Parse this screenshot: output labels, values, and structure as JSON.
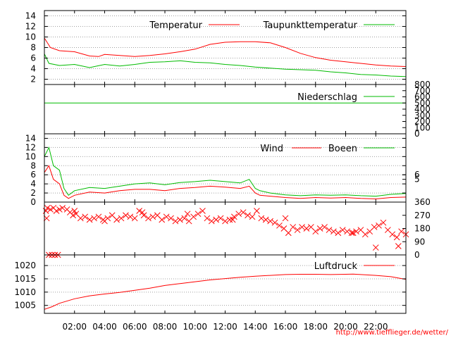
{
  "source_url": "http://www.tiefflieger.de/wetter/",
  "colors": {
    "red": "#ff0000",
    "green": "#00bb00",
    "grid": "#a0a0a0"
  },
  "time_axis": {
    "hours_range": [
      0,
      24
    ],
    "ticks": [
      2,
      4,
      6,
      8,
      10,
      12,
      14,
      16,
      18,
      20,
      22
    ],
    "tick_labels": [
      "02:00",
      "04:00",
      "06:00",
      "08:00",
      "10:00",
      "12:00",
      "14:00",
      "16:00",
      "18:00",
      "20:00",
      "22:00"
    ]
  },
  "chart_data": [
    {
      "type": "line",
      "ylim": [
        1,
        15
      ],
      "yticks": [
        "2",
        "4",
        "6",
        "8",
        "10",
        "12",
        "14"
      ],
      "legend_position": "top-right",
      "series": [
        {
          "name": "Temperatur",
          "color": "#ff0000",
          "x": [
            0,
            0.4,
            1,
            2,
            3,
            3.6,
            4,
            5,
            6,
            7,
            8,
            9,
            10,
            11,
            12,
            13,
            14,
            15,
            16,
            17,
            18,
            19,
            20,
            21,
            22,
            23,
            24
          ],
          "y": [
            9.8,
            8,
            7.4,
            7.2,
            6.4,
            6.3,
            6.7,
            6.5,
            6.3,
            6.5,
            6.8,
            7.2,
            7.7,
            8.6,
            9,
            9.1,
            9.1,
            8.9,
            8.0,
            6.9,
            6.1,
            5.6,
            5.3,
            5.0,
            4.7,
            4.5,
            4.4
          ]
        },
        {
          "name": "Taupunkttemperatur",
          "color": "#00bb00",
          "x": [
            0,
            0.3,
            1,
            2,
            3,
            4,
            5,
            6,
            7,
            8,
            9,
            10,
            11,
            12,
            13,
            14,
            15,
            16,
            17,
            18,
            19,
            20,
            21,
            22,
            23,
            24
          ],
          "y": [
            6.8,
            5.0,
            4.6,
            4.8,
            4.2,
            4.8,
            4.5,
            4.8,
            5.2,
            5.3,
            5.5,
            5.2,
            5.1,
            4.8,
            4.6,
            4.3,
            4.1,
            3.9,
            3.8,
            3.7,
            3.4,
            3.2,
            2.9,
            2.8,
            2.6,
            2.5
          ]
        }
      ]
    },
    {
      "type": "line",
      "ylim": [
        0,
        800
      ],
      "yticks_right": [
        "0",
        "100",
        "200",
        "300",
        "400",
        "500",
        "600",
        "700",
        "800"
      ],
      "legend_position": "top-right",
      "series": [
        {
          "name": "Niederschlag",
          "color": "#00bb00",
          "x": [
            0,
            24
          ],
          "y": [
            500,
            500
          ]
        }
      ]
    },
    {
      "type": "line",
      "ylim": [
        0,
        15
      ],
      "yticks": [
        "0",
        "2",
        "4",
        "6",
        "8",
        "10",
        "12",
        "14"
      ],
      "yticks_right": [
        "5",
        "6"
      ],
      "legend_position": "top-right",
      "series": [
        {
          "name": "Wind",
          "color": "#ff0000",
          "x": [
            0,
            0.3,
            0.6,
            1,
            1.3,
            1.6,
            2,
            3,
            4,
            5,
            6,
            7,
            8,
            9,
            10,
            11,
            12,
            13,
            13.6,
            14,
            14.3,
            15,
            16,
            17,
            18,
            19,
            20,
            21,
            22,
            23,
            24
          ],
          "y": [
            6.5,
            8,
            5,
            4,
            1.5,
            0.8,
            1.5,
            2.2,
            2.0,
            2.5,
            2.8,
            2.8,
            2.5,
            3.0,
            3.2,
            3.5,
            3.3,
            3.0,
            3.5,
            2.0,
            1.5,
            1.3,
            1.0,
            0.8,
            1.0,
            0.9,
            1.0,
            0.8,
            0.7,
            1.0,
            1.1
          ]
        },
        {
          "name": "Boeen",
          "color": "#00bb00",
          "x": [
            0,
            0.3,
            0.6,
            1,
            1.3,
            1.6,
            2,
            3,
            4,
            5,
            6,
            7,
            8,
            9,
            10,
            11,
            12,
            13,
            13.6,
            14,
            14.3,
            15,
            16,
            17,
            18,
            19,
            20,
            21,
            22,
            23,
            24
          ],
          "y": [
            10,
            12,
            8,
            7,
            3,
            1.5,
            2.5,
            3.2,
            3.0,
            3.5,
            4.0,
            4.2,
            3.8,
            4.3,
            4.5,
            4.8,
            4.5,
            4.2,
            5.0,
            3.0,
            2.5,
            2.0,
            1.6,
            1.4,
            1.6,
            1.5,
            1.6,
            1.4,
            1.3,
            1.7,
            1.9
          ]
        }
      ]
    },
    {
      "type": "scatter",
      "ylim": [
        0,
        360
      ],
      "yticks_right": [
        "0",
        "90",
        "180",
        "270",
        "360"
      ],
      "series": [
        {
          "name": "",
          "color": "#ff0000",
          "marker": "x",
          "x": [
            0.1,
            0.2,
            0.4,
            0.6,
            0.8,
            1.0,
            0.3,
            0.7,
            1.2,
            1.5,
            1.7,
            1.9,
            2.1,
            2.4,
            2.7,
            3.0,
            3.3,
            3.6,
            3.9,
            4.2,
            4.5,
            4.8,
            5.1,
            5.4,
            5.7,
            6.0,
            6.3,
            6.6,
            6.9,
            7.2,
            7.5,
            7.8,
            8.1,
            8.4,
            8.7,
            9.0,
            9.3,
            9.6,
            9.9,
            10.2,
            10.5,
            10.8,
            11.1,
            11.4,
            11.7,
            12.0,
            12.3,
            12.6,
            12.9,
            13.2,
            13.5,
            13.8,
            14.1,
            14.4,
            14.7,
            15.0,
            15.3,
            15.6,
            15.9,
            16.2,
            16.5,
            16.8,
            17.1,
            17.4,
            17.7,
            18.0,
            18.3,
            18.6,
            18.9,
            19.2,
            19.5,
            19.8,
            20.1,
            20.4,
            20.7,
            21.0,
            21.3,
            21.6,
            21.9,
            22.2,
            22.5,
            22.8,
            23.1,
            23.4,
            23.7,
            24.0,
            0.15,
            0.5,
            0.9,
            2.0,
            4.0,
            6.5,
            9.5,
            12.5,
            16.0,
            20.5,
            22.0,
            23.5
          ],
          "y": [
            300,
            320,
            310,
            320,
            300,
            310,
            0,
            0,
            320,
            310,
            290,
            270,
            280,
            250,
            260,
            240,
            250,
            260,
            240,
            250,
            270,
            240,
            250,
            270,
            260,
            250,
            300,
            270,
            250,
            260,
            270,
            240,
            260,
            250,
            230,
            240,
            250,
            230,
            260,
            280,
            300,
            250,
            230,
            240,
            250,
            230,
            240,
            260,
            280,
            290,
            270,
            260,
            300,
            250,
            240,
            230,
            220,
            200,
            180,
            150,
            190,
            170,
            190,
            180,
            190,
            160,
            180,
            190,
            170,
            160,
            150,
            170,
            160,
            150,
            160,
            170,
            140,
            160,
            190,
            200,
            220,
            170,
            140,
            120,
            160,
            140,
            250,
            0,
            0,
            300,
            230,
            290,
            280,
            240,
            250,
            150,
            50,
            60
          ]
        }
      ]
    },
    {
      "type": "line",
      "ylim": [
        1002,
        1024
      ],
      "yticks": [
        "1005",
        "1010",
        "1015",
        "1020"
      ],
      "legend_position": "top-right",
      "series": [
        {
          "name": "Luftdruck",
          "color": "#ff0000",
          "x": [
            0,
            0.5,
            1,
            2,
            3,
            4,
            5,
            6,
            7,
            8,
            9,
            10,
            11,
            12,
            13,
            14,
            15,
            16,
            17,
            18,
            19,
            20,
            20.5,
            21,
            22,
            23,
            24
          ],
          "y": [
            1003.5,
            1004.5,
            1005.8,
            1007.5,
            1008.6,
            1009.3,
            1009.9,
            1010.7,
            1011.5,
            1012.5,
            1013.2,
            1013.9,
            1014.6,
            1015.1,
            1015.6,
            1016.0,
            1016.3,
            1016.6,
            1016.7,
            1016.7,
            1016.6,
            1016.7,
            1016.8,
            1016.6,
            1016.3,
            1015.8,
            1014.8
          ]
        }
      ]
    }
  ]
}
